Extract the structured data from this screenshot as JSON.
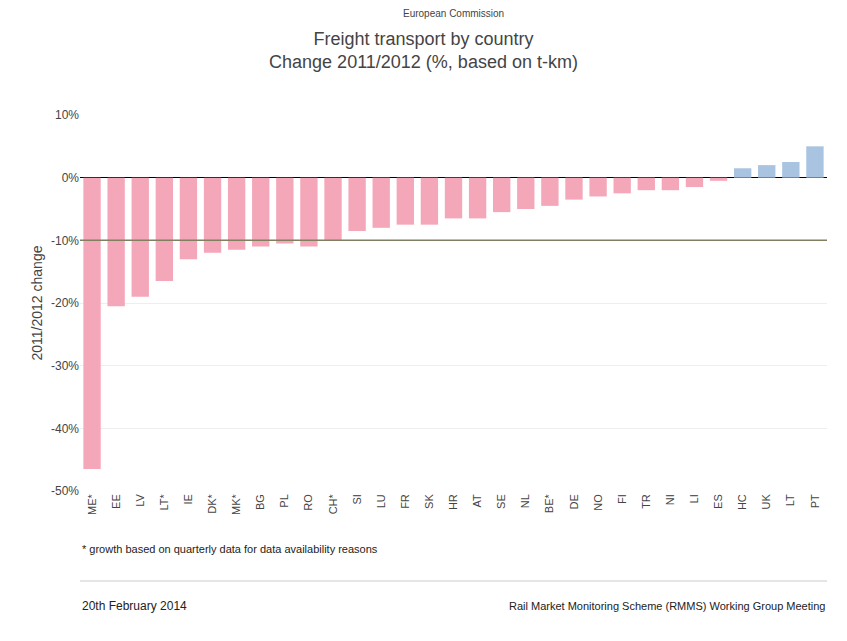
{
  "chart_data": {
    "type": "bar",
    "title": "Freight transport by country",
    "subtitle": "Change 2011/2012 (%, based on t-km)",
    "ylabel": "2011/2012 change",
    "categories": [
      "ME*",
      "EE",
      "LV",
      "LT*",
      "IE",
      "DK*",
      "MK*",
      "BG",
      "PL",
      "RO",
      "CH*",
      "SI",
      "LU",
      "FR",
      "SK",
      "HR",
      "AT",
      "SE",
      "NL",
      "BE*",
      "DE",
      "NO",
      "FI",
      "TR",
      "NI",
      "LI",
      "ES",
      "HC",
      "UK",
      "LT",
      "PT"
    ],
    "values": [
      -46.5,
      -20.5,
      -19.0,
      -16.5,
      -13.0,
      -12.0,
      -11.5,
      -11.0,
      -10.5,
      -11.0,
      -10.0,
      -8.5,
      -8.0,
      -7.5,
      -7.5,
      -6.5,
      -6.5,
      -5.5,
      -5.0,
      -4.5,
      -3.5,
      -3.0,
      -2.5,
      -2.0,
      -2.0,
      -1.5,
      -0.5,
      1.5,
      2.0,
      2.5,
      5.0
    ],
    "colors": [
      "#f4a7b9",
      "#f4a7b9",
      "#f4a7b9",
      "#f4a7b9",
      "#f4a7b9",
      "#f4a7b9",
      "#f4a7b9",
      "#f4a7b9",
      "#f4a7b9",
      "#f4a7b9",
      "#f4a7b9",
      "#f4a7b9",
      "#f4a7b9",
      "#f4a7b9",
      "#f4a7b9",
      "#f4a7b9",
      "#f4a7b9",
      "#f4a7b9",
      "#f4a7b9",
      "#f4a7b9",
      "#f4a7b9",
      "#f4a7b9",
      "#f4a7b9",
      "#f4a7b9",
      "#f4a7b9",
      "#f4a7b9",
      "#f4a7b9",
      "#a8c4e0",
      "#a8c4e0",
      "#a8c4e0",
      "#a8c4e0"
    ],
    "ylim": [
      -50,
      10
    ],
    "yticks": [
      {
        "value": 10,
        "label": "10%"
      },
      {
        "value": 0,
        "label": "0%"
      },
      {
        "value": -10,
        "label": "-10%"
      },
      {
        "value": -20,
        "label": "-20%"
      },
      {
        "value": -30,
        "label": "-30%"
      },
      {
        "value": -40,
        "label": "-40%"
      },
      {
        "value": -50,
        "label": "-50%"
      }
    ],
    "grid": true,
    "reference_line": {
      "y": -10.0,
      "color": "#808060"
    },
    "annotations": [
      "European Commission",
      "* growth based on quarterly data for data availability reasons",
      "20th February 2014",
      "Rail Market Monitoring Scheme (RMMS) Working Group Meeting"
    ]
  }
}
